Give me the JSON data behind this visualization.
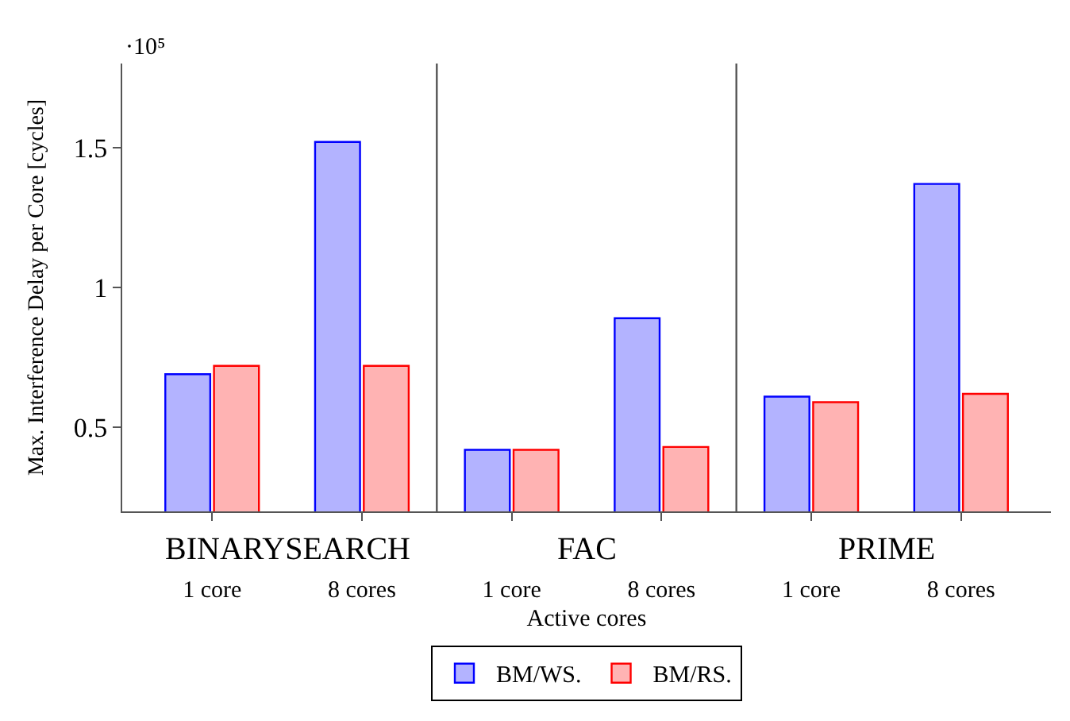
{
  "chart_data": {
    "type": "bar",
    "categories": [
      "1 core",
      "8 cores",
      "1 core",
      "8 cores",
      "1 core",
      "8 cores"
    ],
    "series": [
      {
        "name": "BM/WS.",
        "color": "#b3b3ff",
        "values": [
          0.69,
          1.52,
          0.42,
          0.89,
          0.61,
          1.37
        ]
      },
      {
        "name": "BM/RS.",
        "color": "#ffb3b3",
        "values": [
          0.72,
          0.72,
          0.42,
          0.43,
          0.59,
          0.62
        ]
      }
    ],
    "xlabel": "Active cores",
    "ylabel": "Max. Interference Delay per Core [cycles]",
    "ylim": [
      0.2,
      1.8
    ],
    "yticks": [
      0.5,
      1,
      1.5
    ],
    "annotations": [
      "·10⁵",
      "BINARYSEARCH",
      "FAC",
      "PRIME"
    ],
    "legend": "bottom"
  }
}
